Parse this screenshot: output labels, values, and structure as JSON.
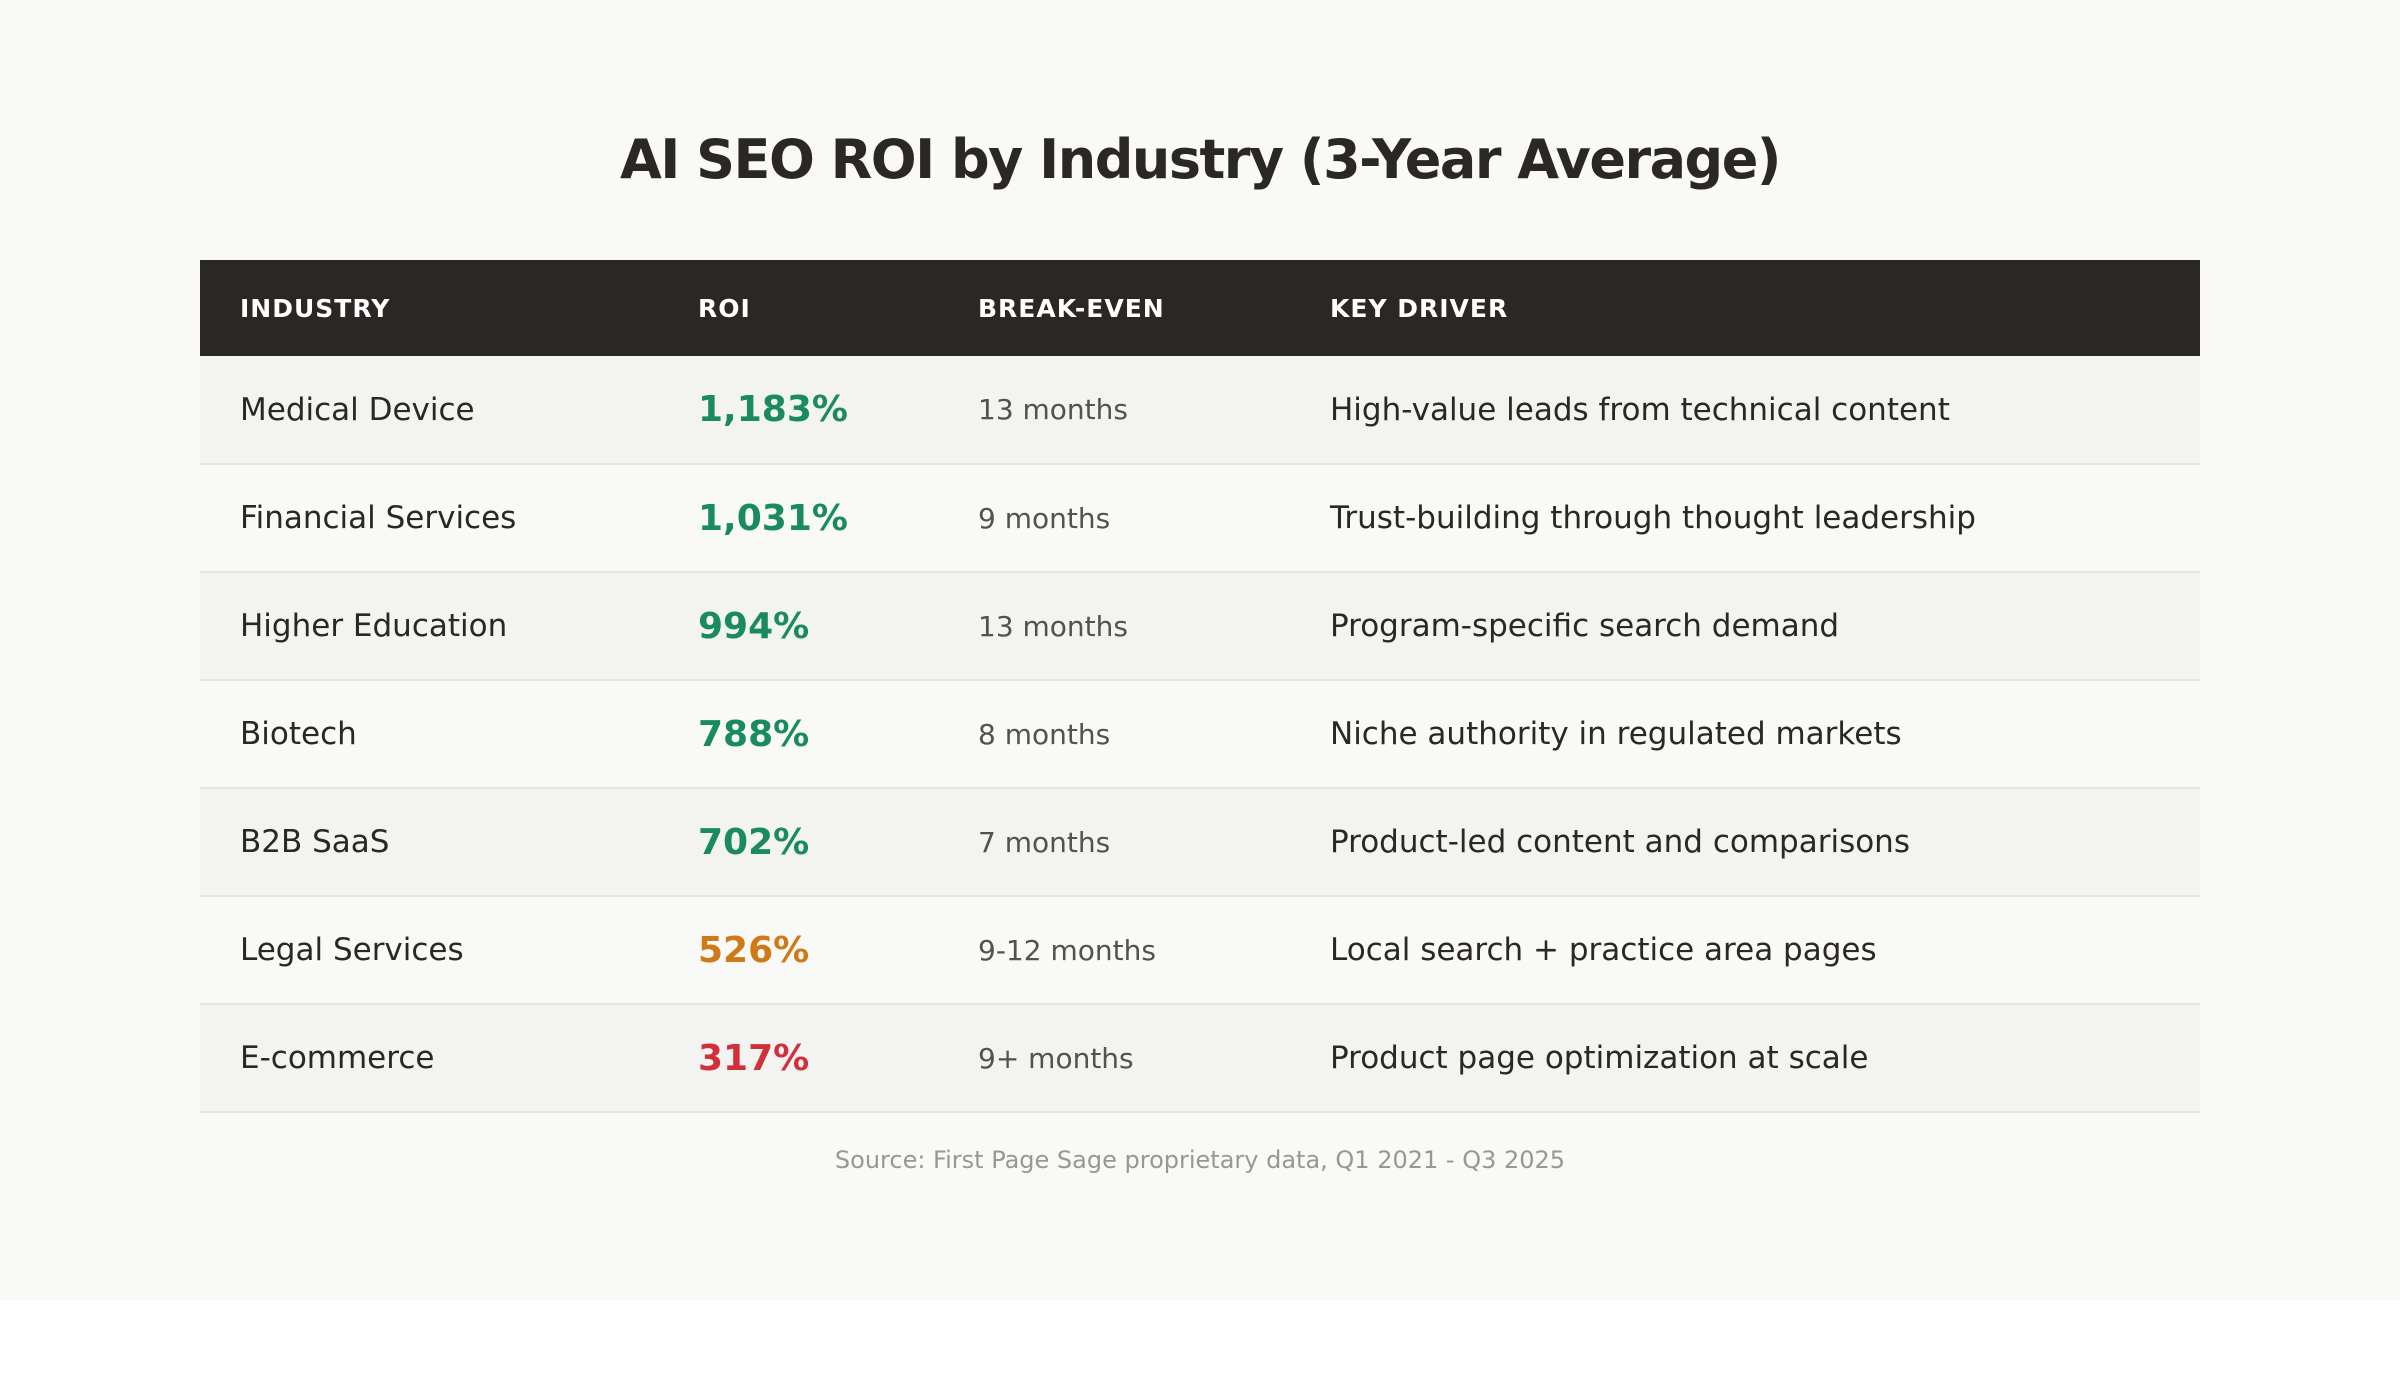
{
  "chart_data": {
    "type": "table",
    "title": "AI SEO ROI by Industry (3-Year Average)",
    "columns": [
      "INDUSTRY",
      "ROI",
      "BREAK-EVEN",
      "KEY DRIVER"
    ],
    "rows": [
      {
        "industry": "Medical Device",
        "roi": "1,183%",
        "roi_value": 1183,
        "roi_color": "#1a8a62",
        "break_even": "13 months",
        "key_driver": "High-value leads from technical content"
      },
      {
        "industry": "Financial Services",
        "roi": "1,031%",
        "roi_value": 1031,
        "roi_color": "#1a8a62",
        "break_even": "9 months",
        "key_driver": "Trust-building through thought leadership"
      },
      {
        "industry": "Higher Education",
        "roi": "994%",
        "roi_value": 994,
        "roi_color": "#1a8a62",
        "break_even": "13 months",
        "key_driver": "Program-specific search demand"
      },
      {
        "industry": "Biotech",
        "roi": "788%",
        "roi_value": 788,
        "roi_color": "#1a8a62",
        "break_even": "8 months",
        "key_driver": "Niche authority in regulated markets"
      },
      {
        "industry": "B2B SaaS",
        "roi": "702%",
        "roi_value": 702,
        "roi_color": "#1a8a62",
        "break_even": "7 months",
        "key_driver": "Product-led content and comparisons"
      },
      {
        "industry": "Legal Services",
        "roi": "526%",
        "roi_value": 526,
        "roi_color": "#cf7a16",
        "break_even": "9-12 months",
        "key_driver": "Local search + practice area pages"
      },
      {
        "industry": "E-commerce",
        "roi": "317%",
        "roi_value": 317,
        "roi_color": "#d1303a",
        "break_even": "9+ months",
        "key_driver": "Product page optimization at scale"
      }
    ],
    "source": "Source: First Page Sage proprietary data, Q1 2021 - Q3 2025"
  },
  "colors": {
    "header_background": "#2a2725",
    "page_background": "#f9f9f7",
    "roi_high": "#1a8a62",
    "roi_mid": "#cf7a16",
    "roi_low": "#d1303a"
  }
}
